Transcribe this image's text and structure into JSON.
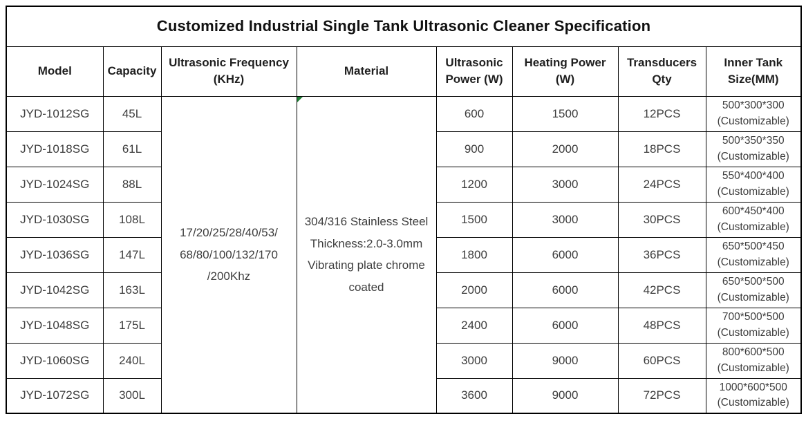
{
  "title": "Customized Industrial Single Tank Ultrasonic Cleaner Specification",
  "colors": {
    "border": "#000000",
    "text": "#3d3d3d",
    "title_text": "#111111",
    "background": "#ffffff",
    "corner_marker_green": "#1e7e34"
  },
  "table": {
    "columns": [
      {
        "key": "model",
        "label": "Model"
      },
      {
        "key": "capacity",
        "label": "Capacity"
      },
      {
        "key": "frequency",
        "label": "Ultrasonic Frequency (KHz)"
      },
      {
        "key": "material",
        "label": "Material"
      },
      {
        "key": "ultrasonic_power",
        "label": "Ultrasonic Power (W)"
      },
      {
        "key": "heating_power",
        "label": "Heating Power (W)"
      },
      {
        "key": "transducers",
        "label": "Transducers Qty"
      },
      {
        "key": "tank_size",
        "label": "Inner Tank Size(MM)"
      }
    ],
    "merged": {
      "frequency": "17/20/25/28/40/53/\n68/80/100/132/170\n/200Khz",
      "material": "304/316 Stainless Steel\nThickness:2.0-3.0mm\nVibrating plate chrome\ncoated"
    },
    "rows": [
      {
        "model": "JYD-1012SG",
        "capacity": "45L",
        "ultrasonic_power": "600",
        "heating_power": "1500",
        "transducers": "12PCS",
        "tank_size": "500*300*300\n(Customizable)"
      },
      {
        "model": "JYD-1018SG",
        "capacity": "61L",
        "ultrasonic_power": "900",
        "heating_power": "2000",
        "transducers": "18PCS",
        "tank_size": "500*350*350\n(Customizable)"
      },
      {
        "model": "JYD-1024SG",
        "capacity": "88L",
        "ultrasonic_power": "1200",
        "heating_power": "3000",
        "transducers": "24PCS",
        "tank_size": "550*400*400\n(Customizable)"
      },
      {
        "model": "JYD-1030SG",
        "capacity": "108L",
        "ultrasonic_power": "1500",
        "heating_power": "3000",
        "transducers": "30PCS",
        "tank_size": "600*450*400\n(Customizable)"
      },
      {
        "model": "JYD-1036SG",
        "capacity": "147L",
        "ultrasonic_power": "1800",
        "heating_power": "6000",
        "transducers": "36PCS",
        "tank_size": "650*500*450\n(Customizable)"
      },
      {
        "model": "JYD-1042SG",
        "capacity": "163L",
        "ultrasonic_power": "2000",
        "heating_power": "6000",
        "transducers": "42PCS",
        "tank_size": "650*500*500\n(Customizable)"
      },
      {
        "model": "JYD-1048SG",
        "capacity": "175L",
        "ultrasonic_power": "2400",
        "heating_power": "6000",
        "transducers": "48PCS",
        "tank_size": "700*500*500\n(Customizable)"
      },
      {
        "model": "JYD-1060SG",
        "capacity": "240L",
        "ultrasonic_power": "3000",
        "heating_power": "9000",
        "transducers": "60PCS",
        "tank_size": "800*600*500\n(Customizable)"
      },
      {
        "model": "JYD-1072SG",
        "capacity": "300L",
        "ultrasonic_power": "3600",
        "heating_power": "9000",
        "transducers": "72PCS",
        "tank_size": "1000*600*500\n(Customizable)"
      }
    ]
  }
}
